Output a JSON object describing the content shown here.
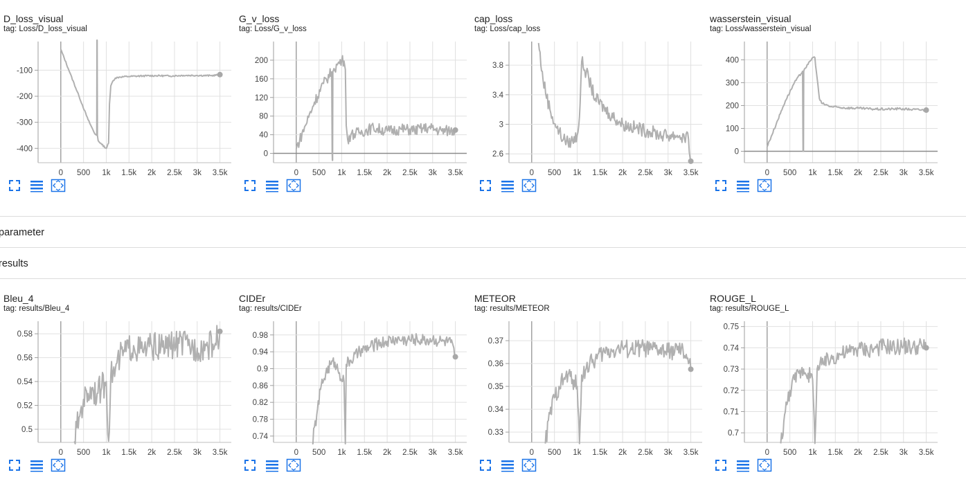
{
  "sections": {
    "parameter": "parameter",
    "results": "results"
  },
  "toolbar": {
    "fullscreen_icon": "fullscreen-icon",
    "data_table_icon": "list-icon",
    "fit_domain_icon": "fit-domain-icon"
  },
  "colors": {
    "series": "#b0b0b0",
    "accent": "#1a73e8",
    "grid": "#e0e0e0",
    "axis": "#9e9e9e"
  },
  "charts": [
    {
      "title": "D_loss_visual",
      "tag": "tag: Loss/D_loss_visual"
    },
    {
      "title": "G_v_loss",
      "tag": "tag: Loss/G_v_loss"
    },
    {
      "title": "cap_loss",
      "tag": "tag: Loss/cap_loss"
    },
    {
      "title": "wasserstein_visual",
      "tag": "tag: Loss/wasserstein_visual"
    },
    {
      "title": "Bleu_4",
      "tag": "tag: results/Bleu_4"
    },
    {
      "title": "CIDEr",
      "tag": "tag: results/CIDEr"
    },
    {
      "title": "METEOR",
      "tag": "tag: results/METEOR"
    },
    {
      "title": "ROUGE_L",
      "tag": "tag: results/ROUGE_L"
    }
  ],
  "chart_data": [
    {
      "type": "line",
      "title": "D_loss_visual",
      "subtitle": "tag: Loss/D_loss_visual",
      "xlim": [
        -500,
        3750
      ],
      "ylim": [
        -455,
        10
      ],
      "xticks": [
        0,
        500,
        1000,
        1500,
        2000,
        2500,
        3000,
        3500
      ],
      "xtick_labels": [
        "0",
        "500",
        "1k",
        "1.5k",
        "2k",
        "2.5k",
        "3k",
        "3.5k"
      ],
      "yticks": [
        -100,
        -200,
        -300,
        -400
      ],
      "ytick_labels": [
        "-100",
        "-200",
        "-300",
        "-400"
      ],
      "zero_line": false,
      "series": [
        {
          "x": [
            0,
            200,
            400,
            600,
            750,
            790,
            795,
            800,
            805,
            820,
            900,
            1000,
            1050,
            1070,
            1100,
            1150,
            1200,
            1300,
            1500,
            1800,
            2100,
            2400,
            2700,
            3000,
            3300,
            3500
          ],
          "y": [
            -20,
            -110,
            -200,
            -290,
            -345,
            -350,
            20,
            20,
            -350,
            -370,
            -385,
            -400,
            -380,
            -230,
            -160,
            -140,
            -130,
            -126,
            -124,
            -122,
            -121,
            -122,
            -120,
            -120,
            -121,
            -117
          ]
        }
      ],
      "noise": 3
    },
    {
      "type": "line",
      "title": "G_v_loss",
      "subtitle": "tag: Loss/G_v_loss",
      "xlim": [
        -500,
        3750
      ],
      "ylim": [
        -20,
        240
      ],
      "xticks": [
        0,
        500,
        1000,
        1500,
        2000,
        2500,
        3000,
        3500
      ],
      "xtick_labels": [
        "0",
        "500",
        "1k",
        "1.5k",
        "2k",
        "2.5k",
        "3k",
        "3.5k"
      ],
      "yticks": [
        0,
        40,
        80,
        120,
        160,
        200
      ],
      "ytick_labels": [
        "0",
        "40",
        "80",
        "120",
        "160",
        "200"
      ],
      "zero_line": true,
      "series": [
        {
          "x": [
            0,
            200,
            400,
            600,
            780,
            790,
            795,
            800,
            805,
            830,
            900,
            1000,
            1050,
            1080,
            1100,
            1130,
            1200,
            1400,
            1700,
            2000,
            2300,
            2600,
            2900,
            3200,
            3500
          ],
          "y": [
            10,
            60,
            110,
            150,
            175,
            0,
            -15,
            -15,
            175,
            182,
            190,
            200,
            198,
            180,
            60,
            30,
            40,
            45,
            55,
            48,
            52,
            50,
            55,
            48,
            50
          ]
        }
      ],
      "noise": 12
    },
    {
      "type": "line",
      "title": "cap_loss",
      "subtitle": "tag: Loss/cap_loss",
      "xlim": [
        -500,
        3750
      ],
      "ylim": [
        2.48,
        4.12
      ],
      "xticks": [
        0,
        500,
        1000,
        1500,
        2000,
        2500,
        3000,
        3500
      ],
      "xtick_labels": [
        "0",
        "500",
        "1k",
        "1.5k",
        "2k",
        "2.5k",
        "3k",
        "3.5k"
      ],
      "yticks": [
        2.6,
        3.0,
        3.4,
        3.8
      ],
      "ytick_labels": [
        "2.6",
        "3",
        "3.4",
        "3.8"
      ],
      "zero_line": false,
      "series": [
        {
          "x": [
            150,
            250,
            400,
            550,
            700,
            800,
            900,
            1000,
            1050,
            1100,
            1200,
            1400,
            1700,
            2000,
            2300,
            2600,
            2900,
            3200,
            3450,
            3500
          ],
          "y": [
            4.1,
            3.6,
            3.2,
            2.95,
            2.8,
            2.75,
            2.78,
            2.85,
            3.1,
            3.85,
            3.7,
            3.35,
            3.15,
            3.0,
            2.95,
            2.9,
            2.85,
            2.85,
            2.8,
            2.5
          ]
        }
      ],
      "noise": 0.09
    },
    {
      "type": "line",
      "title": "wasserstein_visual",
      "subtitle": "tag: Loss/wasserstein_visual",
      "xlim": [
        -500,
        3750
      ],
      "ylim": [
        -50,
        480
      ],
      "xticks": [
        0,
        500,
        1000,
        1500,
        2000,
        2500,
        3000,
        3500
      ],
      "xtick_labels": [
        "0",
        "500",
        "1k",
        "1.5k",
        "2k",
        "2.5k",
        "3k",
        "3.5k"
      ],
      "yticks": [
        0,
        100,
        200,
        300,
        400
      ],
      "ytick_labels": [
        "0",
        "100",
        "200",
        "300",
        "400"
      ],
      "zero_line": true,
      "series": [
        {
          "x": [
            0,
            200,
            400,
            600,
            780,
            790,
            795,
            800,
            805,
            820,
            900,
            1000,
            1050,
            1100,
            1150,
            1200,
            1400,
            1700,
            2000,
            2300,
            2600,
            2900,
            3200,
            3500
          ],
          "y": [
            20,
            120,
            220,
            300,
            350,
            0,
            0,
            0,
            350,
            360,
            380,
            410,
            410,
            320,
            230,
            210,
            195,
            190,
            188,
            185,
            184,
            186,
            183,
            180
          ]
        }
      ],
      "noise": 5
    },
    {
      "type": "line",
      "title": "Bleu_4",
      "subtitle": "tag: results/Bleu_4",
      "xlim": [
        -500,
        3750
      ],
      "ylim": [
        0.489,
        0.5905
      ],
      "xticks": [
        0,
        500,
        1000,
        1500,
        2000,
        2500,
        3000,
        3500
      ],
      "xtick_labels": [
        "0",
        "500",
        "1k",
        "1.5k",
        "2k",
        "2.5k",
        "3k",
        "3.5k"
      ],
      "yticks": [
        0.5,
        0.52,
        0.54,
        0.56,
        0.58
      ],
      "ytick_labels": [
        "0.5",
        "0.52",
        "0.54",
        "0.56",
        "0.58"
      ],
      "zero_line": false,
      "series": [
        {
          "x": [
            300,
            400,
            500,
            600,
            700,
            800,
            900,
            1000,
            1050,
            1100,
            1200,
            1300,
            1400,
            1600,
            1800,
            2000,
            2200,
            2400,
            2600,
            2800,
            3000,
            3200,
            3400,
            3500
          ],
          "y": [
            0.49,
            0.51,
            0.525,
            0.53,
            0.535,
            0.53,
            0.535,
            0.54,
            0.49,
            0.545,
            0.55,
            0.56,
            0.565,
            0.57,
            0.565,
            0.57,
            0.568,
            0.57,
            0.572,
            0.57,
            0.568,
            0.57,
            0.572,
            0.582
          ]
        }
      ],
      "noise": 0.012
    },
    {
      "type": "line",
      "title": "CIDEr",
      "subtitle": "tag: results/CIDEr",
      "xlim": [
        -500,
        3750
      ],
      "ylim": [
        0.725,
        1.0125
      ],
      "xticks": [
        0,
        500,
        1000,
        1500,
        2000,
        2500,
        3000,
        3500
      ],
      "xtick_labels": [
        "0",
        "500",
        "1k",
        "1.5k",
        "2k",
        "2.5k",
        "3k",
        "3.5k"
      ],
      "yticks": [
        0.74,
        0.78,
        0.82,
        0.86,
        0.9,
        0.94,
        0.98
      ],
      "ytick_labels": [
        "0.74",
        "0.78",
        "0.82",
        "0.86",
        "0.9",
        "0.94",
        "0.98"
      ],
      "zero_line": false,
      "series": [
        {
          "x": [
            350,
            450,
            550,
            650,
            750,
            850,
            950,
            1050,
            1080,
            1100,
            1200,
            1400,
            1600,
            1800,
            2000,
            2200,
            2400,
            2600,
            2800,
            3000,
            3200,
            3400,
            3500
          ],
          "y": [
            0.72,
            0.79,
            0.86,
            0.89,
            0.91,
            0.915,
            0.89,
            0.87,
            0.72,
            0.91,
            0.92,
            0.94,
            0.95,
            0.96,
            0.965,
            0.97,
            0.968,
            0.97,
            0.968,
            0.97,
            0.965,
            0.962,
            0.928
          ]
        }
      ],
      "noise": 0.015
    },
    {
      "type": "line",
      "title": "METEOR",
      "subtitle": "tag: results/METEOR",
      "xlim": [
        -500,
        3750
      ],
      "ylim": [
        0.3255,
        0.3785
      ],
      "xticks": [
        0,
        500,
        1000,
        1500,
        2000,
        2500,
        3000,
        3500
      ],
      "xtick_labels": [
        "0",
        "500",
        "1k",
        "1.5k",
        "2k",
        "2.5k",
        "3k",
        "3.5k"
      ],
      "yticks": [
        0.33,
        0.34,
        0.35,
        0.36,
        0.37
      ],
      "ytick_labels": [
        "0.33",
        "0.34",
        "0.35",
        "0.36",
        "0.37"
      ],
      "zero_line": false,
      "series": [
        {
          "x": [
            300,
            400,
            500,
            600,
            700,
            800,
            900,
            1000,
            1050,
            1100,
            1200,
            1400,
            1600,
            1800,
            2000,
            2200,
            2400,
            2600,
            2800,
            3000,
            3200,
            3400,
            3500
          ],
          "y": [
            0.325,
            0.338,
            0.345,
            0.35,
            0.353,
            0.355,
            0.353,
            0.35,
            0.325,
            0.355,
            0.358,
            0.362,
            0.365,
            0.366,
            0.367,
            0.366,
            0.367,
            0.366,
            0.366,
            0.365,
            0.366,
            0.364,
            0.3575
          ]
        }
      ],
      "noise": 0.004
    },
    {
      "type": "line",
      "title": "ROUGE_L",
      "subtitle": "tag: results/ROUGE_L",
      "xlim": [
        -500,
        3750
      ],
      "ylim": [
        0.6955,
        0.7525
      ],
      "xticks": [
        0,
        500,
        1000,
        1500,
        2000,
        2500,
        3000,
        3500
      ],
      "xtick_labels": [
        "0",
        "500",
        "1k",
        "1.5k",
        "2k",
        "2.5k",
        "3k",
        "3.5k"
      ],
      "yticks": [
        0.7,
        0.71,
        0.72,
        0.73,
        0.74,
        0.75
      ],
      "ytick_labels": [
        "0.7",
        "0.71",
        "0.72",
        "0.73",
        "0.74",
        "0.75"
      ],
      "zero_line": false,
      "series": [
        {
          "x": [
            300,
            400,
            500,
            600,
            700,
            800,
            900,
            1000,
            1050,
            1100,
            1200,
            1400,
            1600,
            1800,
            2000,
            2200,
            2400,
            2600,
            2800,
            3000,
            3200,
            3400,
            3500
          ],
          "y": [
            0.695,
            0.71,
            0.72,
            0.725,
            0.728,
            0.73,
            0.728,
            0.725,
            0.695,
            0.73,
            0.732,
            0.735,
            0.737,
            0.738,
            0.74,
            0.739,
            0.74,
            0.741,
            0.74,
            0.741,
            0.74,
            0.741,
            0.74
          ]
        }
      ],
      "noise": 0.004
    }
  ]
}
